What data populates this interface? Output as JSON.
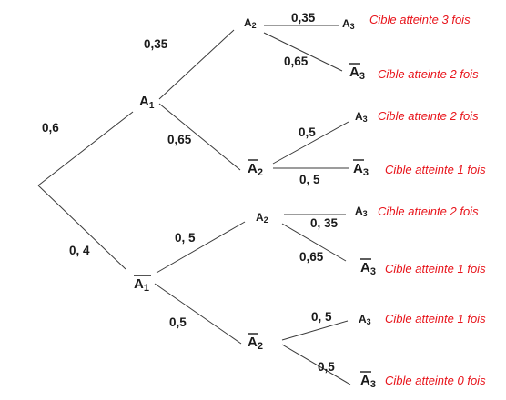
{
  "colors": {
    "outcome": "#e8141b",
    "line": "#3a3a3a",
    "text": "#1a1a1a"
  },
  "root": {
    "branches": [
      {
        "probability": "0,6",
        "node": {
          "letter": "A",
          "subscript": "1",
          "bar": false
        },
        "branches": [
          {
            "probability": "0,35",
            "node": {
              "letter": "A",
              "subscript": "2",
              "bar": false
            },
            "branches": [
              {
                "probability": "0,35",
                "node": {
                  "letter": "A",
                  "subscript": "3",
                  "bar": false
                },
                "outcome": "Cible atteinte 3 fois"
              },
              {
                "probability": "0,65",
                "node": {
                  "letter": "A",
                  "subscript": "3",
                  "bar": true
                },
                "outcome": "Cible atteinte 2 fois"
              }
            ]
          },
          {
            "probability": "0,65",
            "node": {
              "letter": "A",
              "subscript": "2",
              "bar": true
            },
            "branches": [
              {
                "probability": "0,5",
                "node": {
                  "letter": "A",
                  "subscript": "3",
                  "bar": false
                },
                "outcome": "Cible atteinte 2 fois"
              },
              {
                "probability": "0, 5",
                "node": {
                  "letter": "A",
                  "subscript": "3",
                  "bar": true
                },
                "outcome": "Cible atteinte 1 fois"
              }
            ]
          }
        ]
      },
      {
        "probability": "0, 4",
        "node": {
          "letter": "A",
          "subscript": "1",
          "bar": true
        },
        "branches": [
          {
            "probability": "0, 5",
            "node": {
              "letter": "A",
              "subscript": "2",
              "bar": false
            },
            "branches": [
              {
                "probability": "0, 35",
                "node": {
                  "letter": "A",
                  "subscript": "3",
                  "bar": false
                },
                "outcome": "Cible atteinte 2 fois"
              },
              {
                "probability": "0,65",
                "node": {
                  "letter": "A",
                  "subscript": "3",
                  "bar": true
                },
                "outcome": "Cible atteinte 1 fois"
              }
            ]
          },
          {
            "probability": "0,5",
            "node": {
              "letter": "A",
              "subscript": "2",
              "bar": true
            },
            "branches": [
              {
                "probability": "0, 5",
                "node": {
                  "letter": "A",
                  "subscript": "3",
                  "bar": false
                },
                "outcome": "Cible atteinte 1 fois"
              },
              {
                "probability": "0,5",
                "node": {
                  "letter": "A",
                  "subscript": "3",
                  "bar": true
                },
                "outcome": "Cible atteinte 0 fois"
              }
            ]
          }
        ]
      }
    ]
  }
}
